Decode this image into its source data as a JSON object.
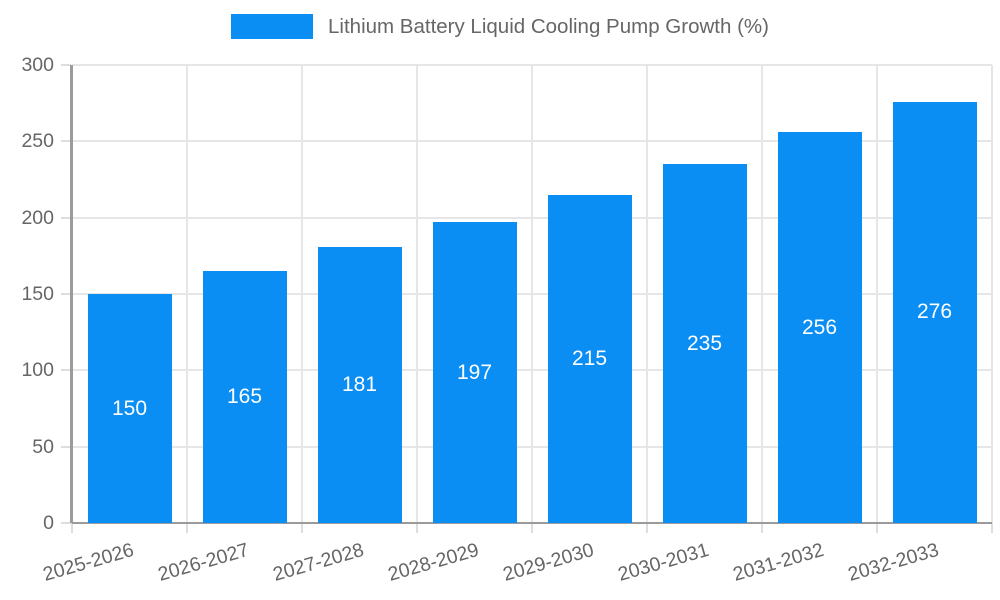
{
  "chart_data": {
    "type": "bar",
    "title": "Lithium Battery Liquid Cooling Pump Growth (%)",
    "categories": [
      "2025-2026",
      "2026-2027",
      "2027-2028",
      "2028-2029",
      "2029-2030",
      "2030-2031",
      "2031-2032",
      "2032-2033"
    ],
    "values": [
      150,
      165,
      181,
      197,
      215,
      235,
      256,
      276
    ],
    "xlabel": "",
    "ylabel": "",
    "ylim": [
      0,
      300
    ],
    "y_ticks": [
      0,
      50,
      100,
      150,
      200,
      250,
      300
    ],
    "grid": true,
    "legend_position": "top",
    "bar_color": "#0b8ef3",
    "bar_label_color": "#ffffff",
    "grid_color": "#e6e6e6",
    "tick_color": "#dedede",
    "axis_color": "#9b9b9b",
    "text_color": "#666666"
  }
}
